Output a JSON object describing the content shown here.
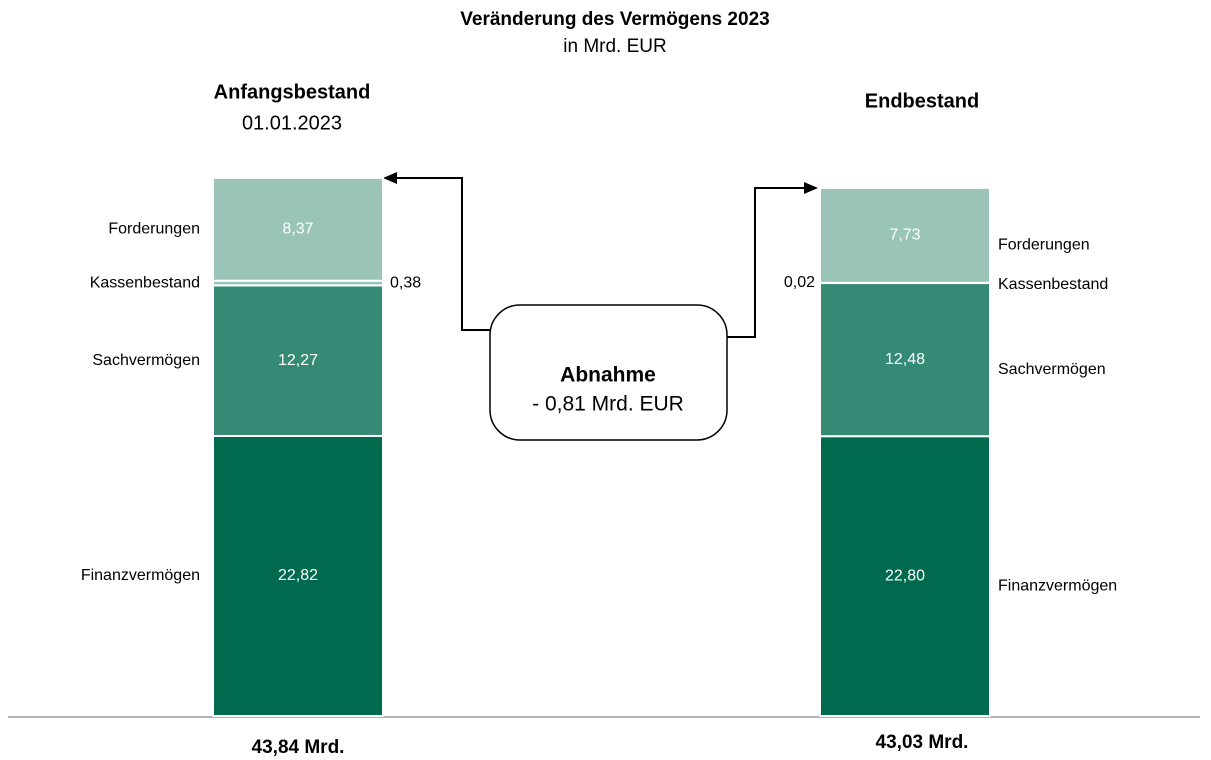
{
  "chart_data": {
    "type": "stacked_bar",
    "title": "Veränderung des Vermögens 2023",
    "subtitle": "in Mrd. EUR",
    "categories": [
      "Anfangsbestand",
      "Endbestand"
    ],
    "category_subtitles": [
      "01.01.2023",
      null
    ],
    "series": [
      {
        "name": "Finanzvermögen",
        "color": "#006a4e",
        "values": [
          22.82,
          22.8
        ],
        "value_labels": [
          "22,82",
          "22,80"
        ]
      },
      {
        "name": "Sachvermögen",
        "color": "#348a74",
        "values": [
          12.27,
          12.48
        ],
        "value_labels": [
          "12,27",
          "12,48"
        ]
      },
      {
        "name": "Kassenbestand",
        "color": "#9ac4b8",
        "values": [
          0.38,
          0.02
        ],
        "value_labels": [
          "0,38",
          "0,02"
        ]
      },
      {
        "name": "Forderungen",
        "color": "#9ac4b8",
        "values": [
          8.37,
          7.73
        ],
        "value_labels": [
          "8,37",
          "7,73"
        ]
      }
    ],
    "totals": [
      {
        "value": 43.84,
        "label": "43,84 Mrd."
      },
      {
        "value": 43.03,
        "label": "43,03 Mrd."
      }
    ],
    "annotation": {
      "title": "Abnahme",
      "text": "- 0,81 Mrd. EUR"
    }
  }
}
